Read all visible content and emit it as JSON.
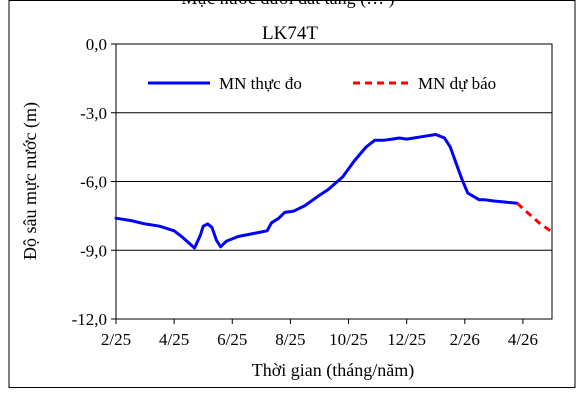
{
  "chart_data": {
    "type": "line",
    "top_caption": "Mực nước dưới đất tầng (… )",
    "title": "LK74T",
    "xlabel": "Thời gian  (tháng/năm)",
    "ylabel": "Độ sâu mực nước (m)",
    "ylim": [
      -12,
      0
    ],
    "yticks": [
      0,
      -3,
      -6,
      -9,
      -12
    ],
    "ytick_labels": [
      "0,0",
      "-3,0",
      "-6,0",
      "-9,0",
      "-12,0"
    ],
    "xlim": [
      0,
      15
    ],
    "xticks": [
      0,
      2,
      4,
      6,
      8,
      10,
      12,
      14
    ],
    "xtick_labels": [
      "2/25",
      "4/25",
      "6/25",
      "8/25",
      "10/25",
      "12/25",
      "2/26",
      "4/26"
    ],
    "grid": "horizontal",
    "legend_position": "top",
    "series": [
      {
        "name": "MN thực đo",
        "color": "#0000ff",
        "dash": "solid",
        "x": [
          0,
          0.5,
          1,
          1.5,
          2,
          2.3,
          2.7,
          2.9,
          3.0,
          3.15,
          3.3,
          3.45,
          3.6,
          3.8,
          4.2,
          4.8,
          5.2,
          5.35,
          5.6,
          5.8,
          6.1,
          6.5,
          7.0,
          7.3,
          7.8,
          8.2,
          8.6,
          8.9,
          9.2,
          9.5,
          9.75,
          10.0,
          10.5,
          11.0,
          11.3,
          11.5,
          11.7,
          11.9,
          12.1,
          12.3,
          12.5,
          12.7,
          13.0,
          13.4,
          13.8
        ],
        "y": [
          -7.6,
          -7.7,
          -7.85,
          -7.95,
          -8.15,
          -8.45,
          -8.9,
          -8.35,
          -7.95,
          -7.85,
          -8.0,
          -8.55,
          -8.85,
          -8.6,
          -8.4,
          -8.25,
          -8.15,
          -7.8,
          -7.6,
          -7.35,
          -7.3,
          -7.05,
          -6.6,
          -6.35,
          -5.8,
          -5.1,
          -4.5,
          -4.2,
          -4.2,
          -4.15,
          -4.1,
          -4.15,
          -4.05,
          -3.95,
          -4.1,
          -4.5,
          -5.2,
          -5.9,
          -6.5,
          -6.65,
          -6.8,
          -6.8,
          -6.85,
          -6.9,
          -6.95
        ]
      },
      {
        "name": "MN dự báo",
        "color": "#ff0000",
        "dash": "dashed",
        "x": [
          13.8,
          14.2,
          14.6,
          15.0
        ],
        "y": [
          -6.95,
          -7.4,
          -7.85,
          -8.2
        ]
      }
    ]
  }
}
